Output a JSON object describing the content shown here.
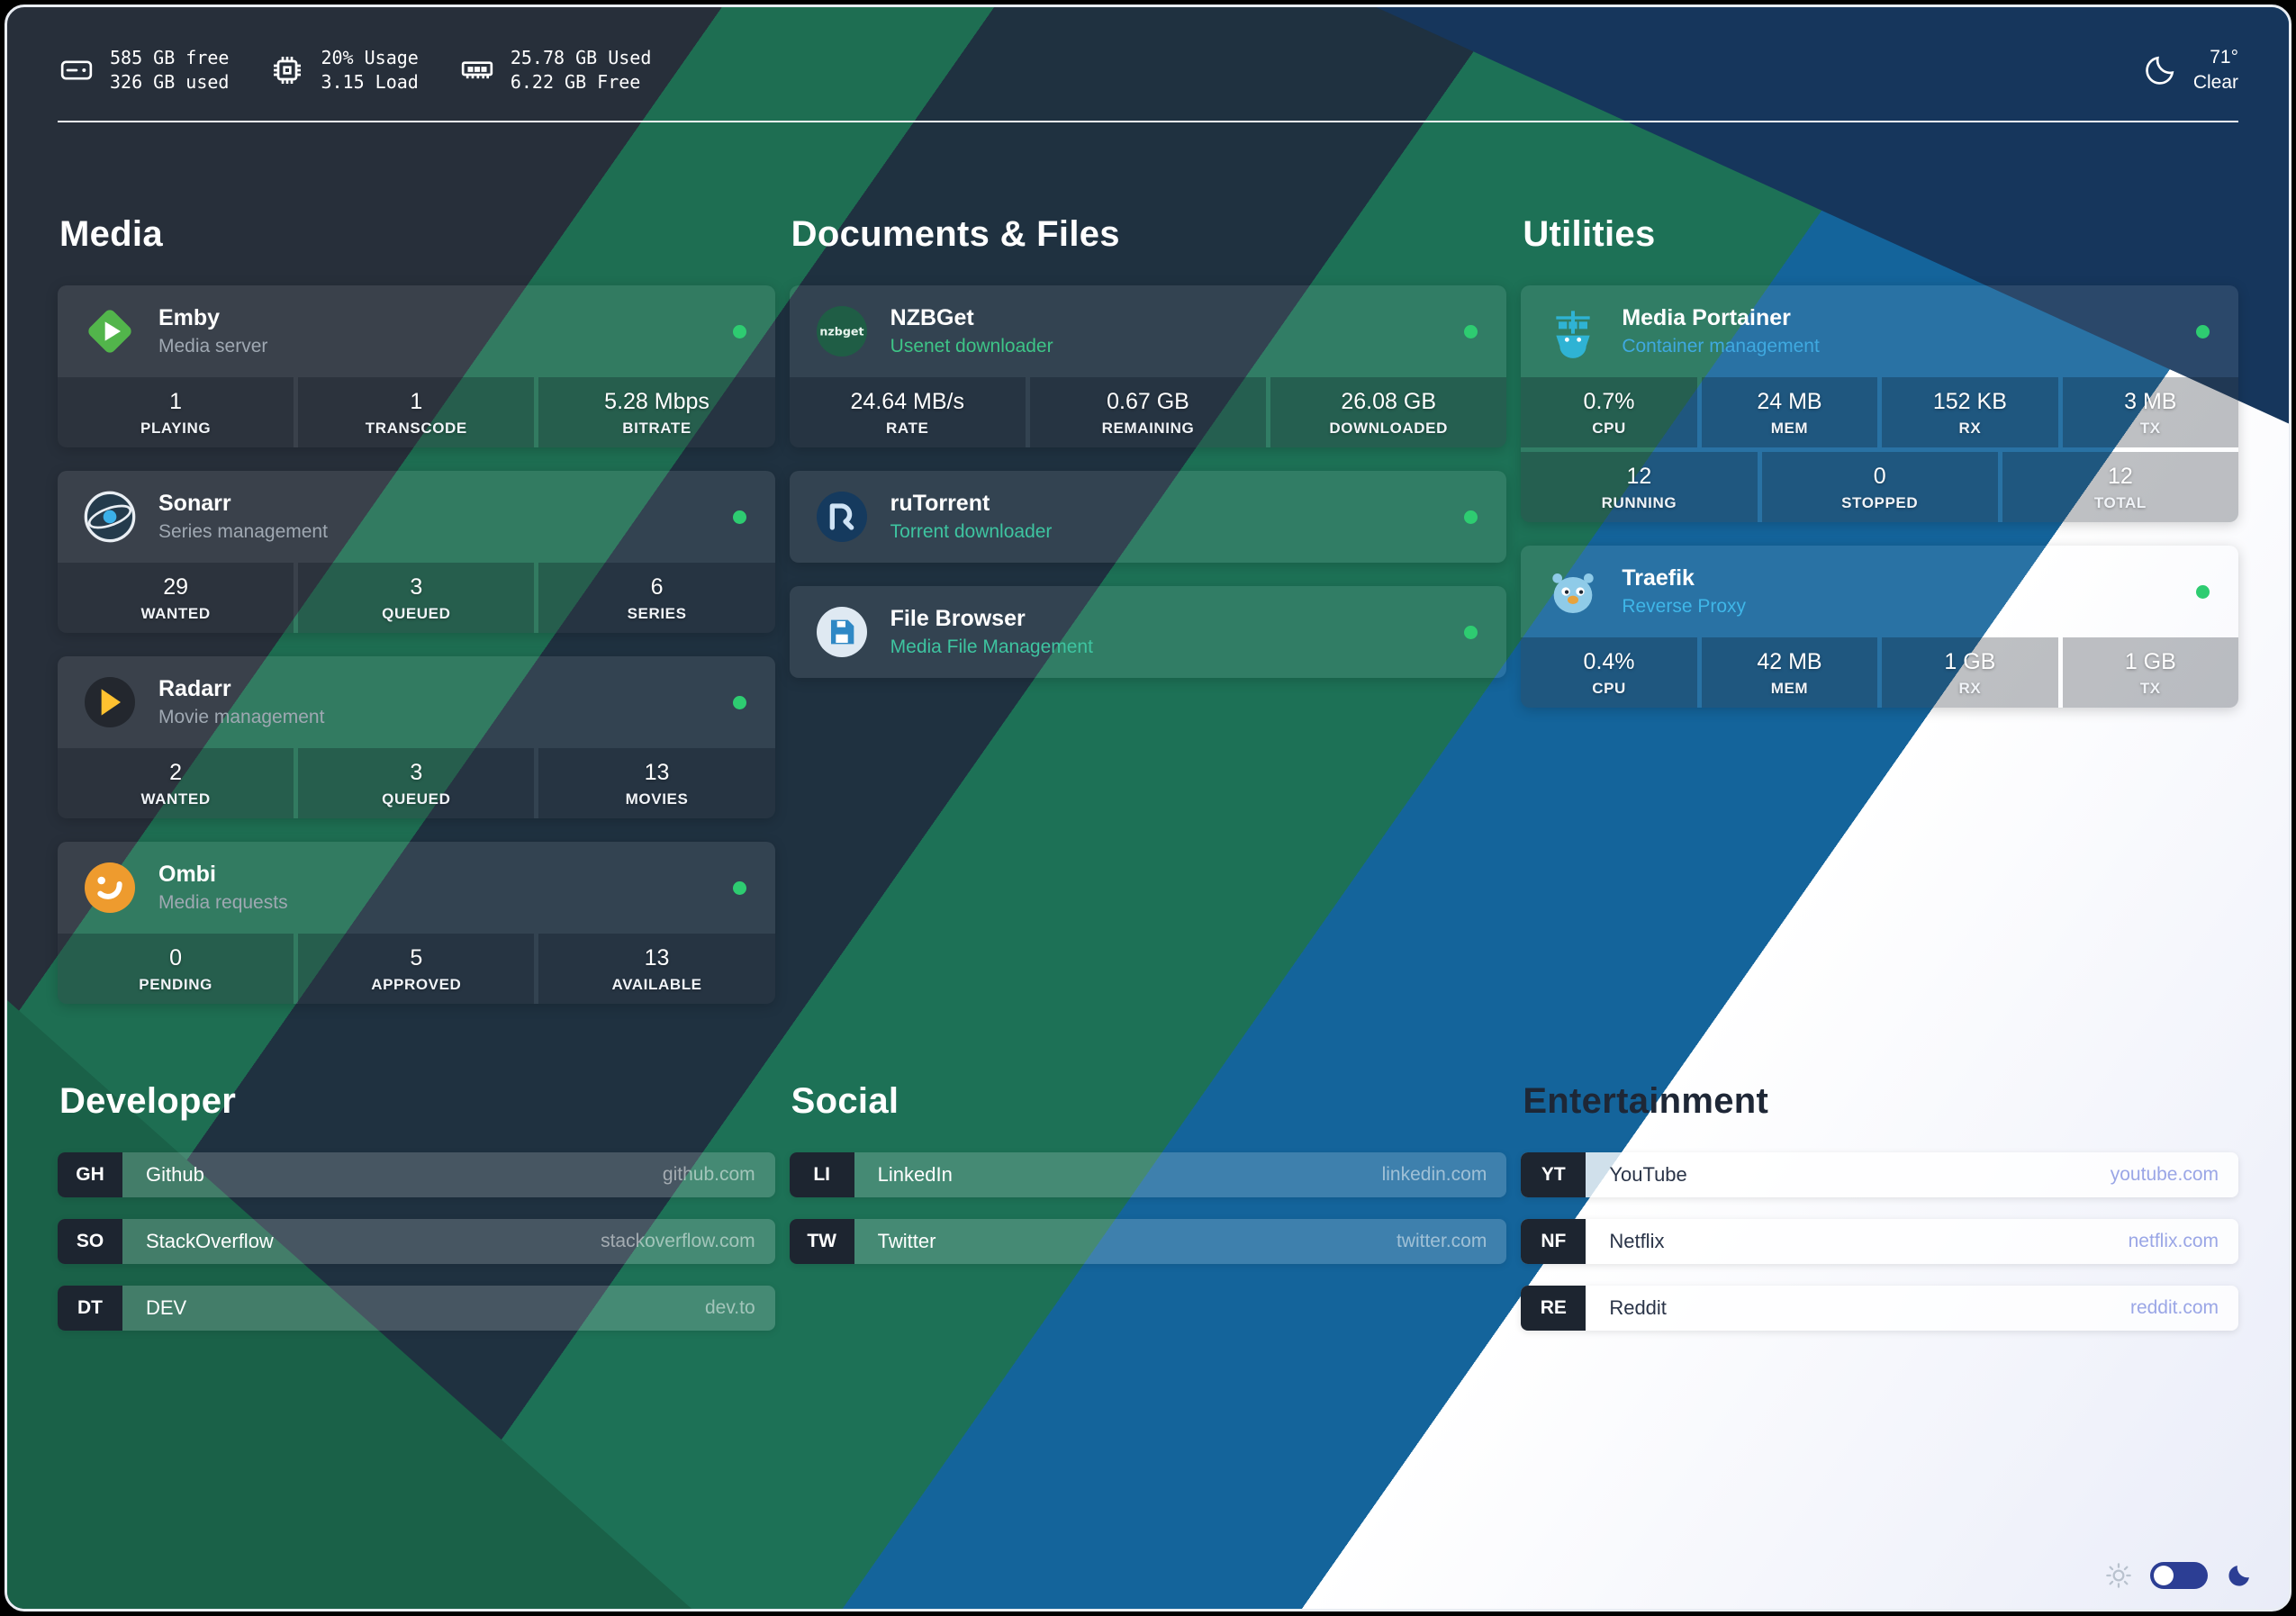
{
  "topbar": {
    "disk": {
      "line1": "585 GB free",
      "line2": "326 GB used"
    },
    "cpu": {
      "line1": "20% Usage",
      "line2": "3.15 Load"
    },
    "memory": {
      "line1": "25.78 GB Used",
      "line2": "6.22 GB Free"
    },
    "weather": {
      "temp": "71°",
      "condition": "Clear"
    }
  },
  "app_sections": [
    {
      "title": "Media",
      "apps": [
        {
          "name": "Emby",
          "desc": "Media server",
          "desc_color": "#9fa8b2",
          "icon": "emby-icon",
          "status_color": "#2ecc71",
          "stat_rows": [
            [
              {
                "value": "1",
                "label": "PLAYING"
              },
              {
                "value": "1",
                "label": "TRANSCODE"
              },
              {
                "value": "5.28 Mbps",
                "label": "BITRATE"
              }
            ]
          ]
        },
        {
          "name": "Sonarr",
          "desc": "Series management",
          "desc_color": "#9fa8b2",
          "icon": "sonarr-icon",
          "status_color": "#2ecc71",
          "stat_rows": [
            [
              {
                "value": "29",
                "label": "WANTED"
              },
              {
                "value": "3",
                "label": "QUEUED"
              },
              {
                "value": "6",
                "label": "SERIES"
              }
            ]
          ]
        },
        {
          "name": "Radarr",
          "desc": "Movie management",
          "desc_color": "#9fa8b2",
          "icon": "radarr-icon",
          "status_color": "#2ecc71",
          "stat_rows": [
            [
              {
                "value": "2",
                "label": "WANTED"
              },
              {
                "value": "3",
                "label": "QUEUED"
              },
              {
                "value": "13",
                "label": "MOVIES"
              }
            ]
          ]
        },
        {
          "name": "Ombi",
          "desc": "Media requests",
          "desc_color": "#9fa8b2",
          "icon": "ombi-icon",
          "status_color": "#2ecc71",
          "stat_rows": [
            [
              {
                "value": "0",
                "label": "PENDING"
              },
              {
                "value": "5",
                "label": "APPROVED"
              },
              {
                "value": "13",
                "label": "AVAILABLE"
              }
            ]
          ]
        }
      ]
    },
    {
      "title": "Documents & Files",
      "apps": [
        {
          "name": "NZBGet",
          "desc": "Usenet downloader",
          "desc_color": "#3ec487",
          "icon": "nzbget-icon",
          "icon_text": "nzbget",
          "status_color": "#2ecc71",
          "stat_rows": [
            [
              {
                "value": "24.64 MB/s",
                "label": "RATE"
              },
              {
                "value": "0.67 GB",
                "label": "REMAINING"
              },
              {
                "value": "26.08 GB",
                "label": "DOWNLOADED"
              }
            ]
          ]
        },
        {
          "name": "ruTorrent",
          "desc": "Torrent downloader",
          "desc_color": "#3ec4a0",
          "icon": "rutorrent-icon",
          "status_color": "#2ecc71",
          "stat_rows": []
        },
        {
          "name": "File Browser",
          "desc": "Media File Management",
          "desc_color": "#3ec4a0",
          "icon": "filebrowser-icon",
          "status_color": "#2ecc71",
          "stat_rows": []
        }
      ]
    },
    {
      "title": "Utilities",
      "apps": [
        {
          "name": "Media Portainer",
          "desc": "Container management",
          "desc_color": "#3fa9e0",
          "icon": "portainer-icon",
          "status_color": "#2ecc71",
          "stat_rows": [
            [
              {
                "value": "0.7%",
                "label": "CPU"
              },
              {
                "value": "24 MB",
                "label": "MEM"
              },
              {
                "value": "152 KB",
                "label": "RX"
              },
              {
                "value": "3 MB",
                "label": "TX"
              }
            ],
            [
              {
                "value": "12",
                "label": "RUNNING"
              },
              {
                "value": "0",
                "label": "STOPPED"
              },
              {
                "value": "12",
                "label": "TOTAL"
              }
            ]
          ]
        },
        {
          "name": "Traefik",
          "desc": "Reverse Proxy",
          "desc_color": "#3fb6e8",
          "icon": "traefik-icon",
          "status_color": "#2ecc71",
          "stat_rows": [
            [
              {
                "value": "0.4%",
                "label": "CPU"
              },
              {
                "value": "42 MB",
                "label": "MEM"
              },
              {
                "value": "1 GB",
                "label": "RX"
              },
              {
                "value": "1 GB",
                "label": "TX"
              }
            ]
          ]
        }
      ]
    }
  ],
  "link_sections": [
    {
      "title": "Developer",
      "theme": "dark",
      "links": [
        {
          "abbrev": "GH",
          "name": "Github",
          "url": "github.com"
        },
        {
          "abbrev": "SO",
          "name": "StackOverflow",
          "url": "stackoverflow.com"
        },
        {
          "abbrev": "DT",
          "name": "DEV",
          "url": "dev.to"
        }
      ]
    },
    {
      "title": "Social",
      "theme": "dark",
      "links": [
        {
          "abbrev": "LI",
          "name": "LinkedIn",
          "url": "linkedin.com"
        },
        {
          "abbrev": "TW",
          "name": "Twitter",
          "url": "twitter.com"
        }
      ]
    },
    {
      "title": "Entertainment",
      "theme": "light",
      "links": [
        {
          "abbrev": "YT",
          "name": "YouTube",
          "url": "youtube.com"
        },
        {
          "abbrev": "NF",
          "name": "Netflix",
          "url": "netflix.com"
        },
        {
          "abbrev": "RE",
          "name": "Reddit",
          "url": "reddit.com"
        }
      ]
    }
  ],
  "colors": {
    "status_online": "#2ecc71",
    "toggle_accent": "#2c3e94",
    "background_bands": [
      "#272f3a",
      "#1e6e52",
      "#1f3140",
      "#1d7156",
      "#14649b",
      "#ffffff"
    ]
  }
}
